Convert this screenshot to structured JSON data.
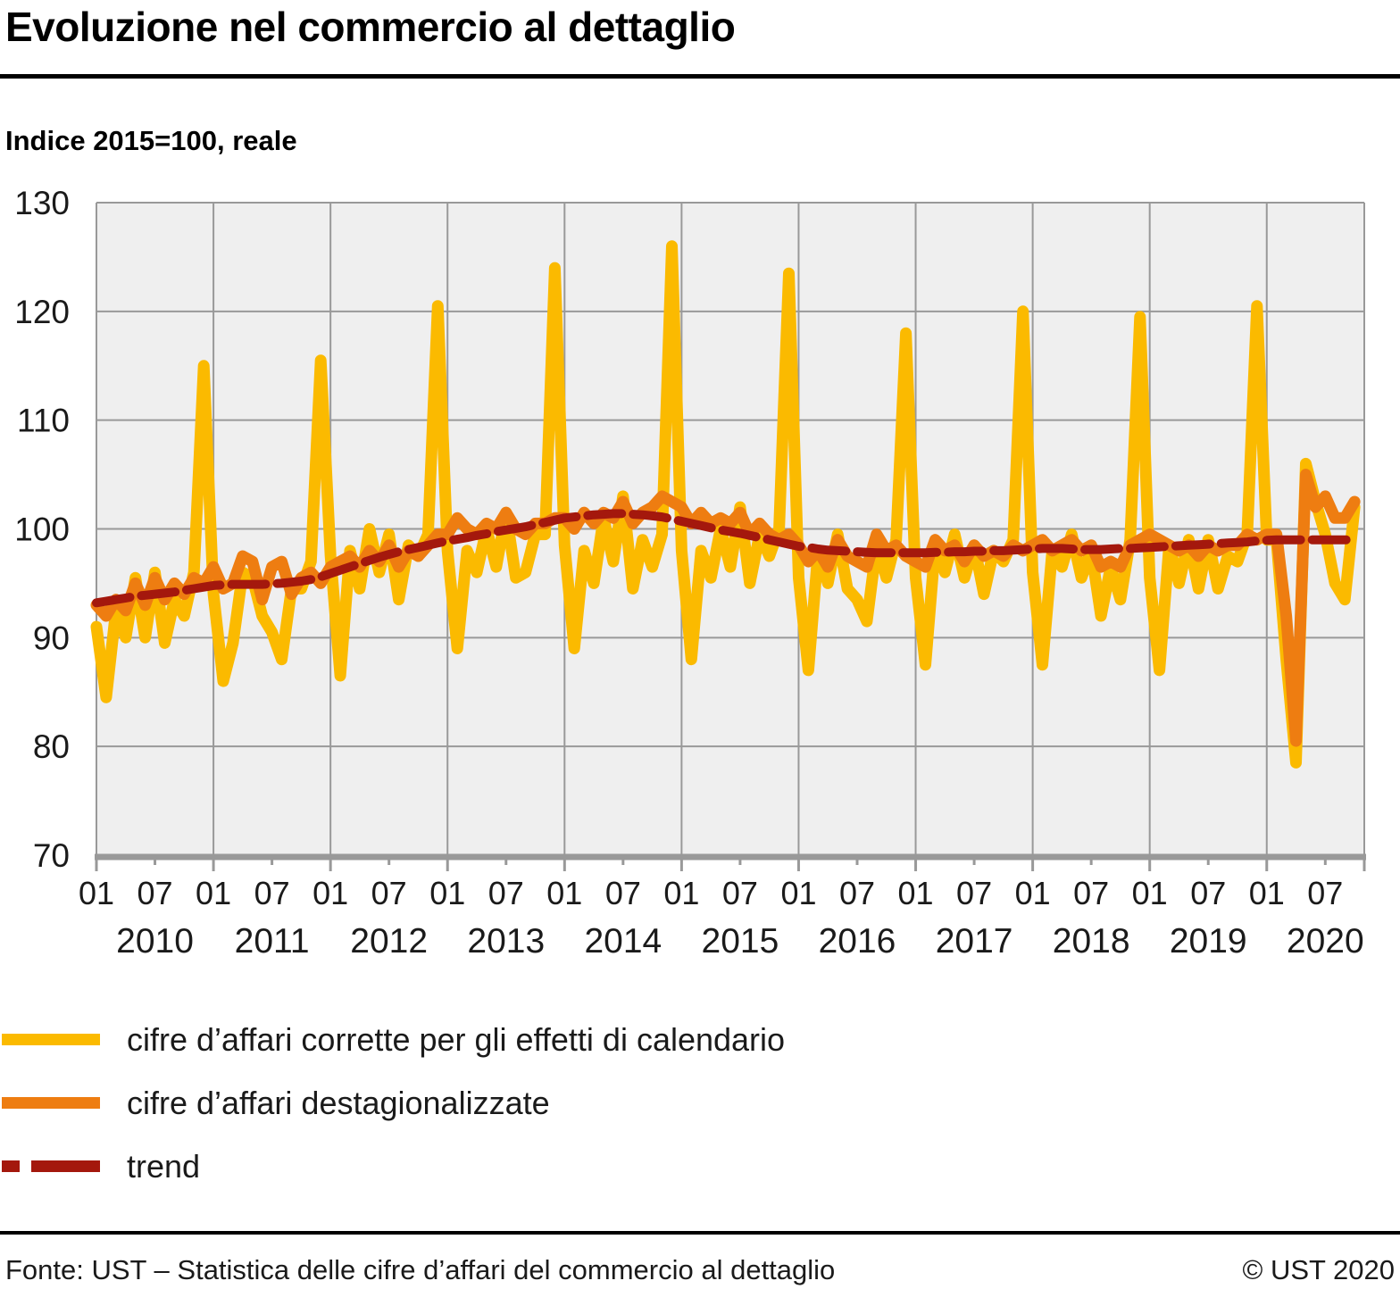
{
  "header": {
    "title": "Evoluzione nel commercio al dettaglio",
    "subtitle": "Indice 2015=100, reale"
  },
  "chart_data": {
    "type": "line",
    "title": "Evoluzione nel commercio al dettaglio",
    "ylabel": "Indice 2015=100, reale",
    "ylim": [
      70,
      130
    ],
    "yticks": [
      70,
      80,
      90,
      100,
      110,
      120,
      130
    ],
    "x_start": "2010-01",
    "x_end": "2020-10",
    "x_frequency": "monthly",
    "x_month_tick_labels": [
      "01",
      "07"
    ],
    "year_labels": [
      "2010",
      "2011",
      "2012",
      "2013",
      "2014",
      "2015",
      "2016",
      "2017",
      "2018",
      "2019",
      "2020"
    ],
    "grid": true,
    "grid_color": "#999999",
    "plot_bg": "#EFEFEF",
    "legend_position": "bottom",
    "series": [
      {
        "id": "calendar-adjusted",
        "name": "cifre d’affari corrette per gli effetti di calendario",
        "color": "#FBBA00",
        "style": "solid",
        "width": 13,
        "values": [
          91,
          84.5,
          92.5,
          90,
          95.5,
          90,
          96,
          89.5,
          93.5,
          92,
          96,
          115,
          94,
          86,
          89.5,
          96,
          95.5,
          92,
          90.5,
          88,
          94.5,
          94.5,
          97,
          115.5,
          97.5,
          86.5,
          98,
          94.5,
          100,
          96,
          99.5,
          93.5,
          98.5,
          97.5,
          99.5,
          120.5,
          98,
          89,
          98,
          96,
          100,
          96.5,
          101.5,
          95.5,
          96,
          99.5,
          99.5,
          124,
          98.5,
          89,
          98,
          95,
          101,
          97,
          103,
          94.5,
          99,
          96.5,
          99.5,
          126,
          98,
          88,
          98,
          95.5,
          100,
          96.5,
          102,
          95,
          99.5,
          97.5,
          100,
          123.5,
          95.5,
          87,
          98,
          95,
          99.5,
          94.5,
          93.5,
          91.5,
          98.5,
          95.5,
          99,
          118,
          95.5,
          87.5,
          98.5,
          96,
          99.5,
          95.5,
          98.5,
          94,
          98,
          97,
          99,
          120,
          96,
          87.5,
          98,
          96.5,
          99.5,
          95.5,
          98,
          92,
          96.5,
          93.5,
          99,
          119.5,
          95.5,
          87,
          98.5,
          95,
          99,
          94.5,
          99,
          94.5,
          97.5,
          97,
          99.5,
          120.5,
          99,
          99,
          88,
          78.5,
          106,
          102.5,
          99.5,
          95,
          93.5,
          102
        ]
      },
      {
        "id": "seasonally-adjusted",
        "name": "cifre d’affari destagionalizzate",
        "color": "#EE7D11",
        "style": "solid",
        "width": 13,
        "values": [
          93,
          92,
          93.5,
          92.5,
          95,
          93,
          95.5,
          93.5,
          95,
          94,
          95.5,
          95,
          96.5,
          94.5,
          95,
          97.5,
          97,
          93.5,
          96.5,
          97,
          94,
          95.5,
          96,
          95,
          96.5,
          97,
          97.5,
          96.5,
          98,
          97,
          98.5,
          96.5,
          98,
          97.5,
          98.5,
          99.5,
          99.5,
          101,
          100,
          99.5,
          100.5,
          100,
          101.5,
          100,
          99.5,
          100.5,
          100.5,
          101,
          101,
          100,
          101.5,
          100.5,
          101.5,
          101,
          102.5,
          100.5,
          101.5,
          102,
          103,
          102.5,
          102,
          100.5,
          101.5,
          100.5,
          101,
          100.5,
          101.5,
          99.5,
          100.5,
          99.5,
          99,
          99.5,
          98.5,
          97,
          98,
          96.5,
          99,
          97.5,
          97,
          96.5,
          99.5,
          98,
          98.5,
          97.5,
          97,
          96.5,
          99,
          98,
          98.5,
          97,
          98.5,
          97.5,
          98,
          97.5,
          98.5,
          98,
          98.5,
          99,
          98,
          98.5,
          99,
          98,
          98.5,
          96.5,
          97,
          96.5,
          98.5,
          99,
          99.5,
          99,
          98.5,
          98,
          98.5,
          97.5,
          98.5,
          98,
          98.5,
          98.5,
          99.5,
          99,
          99.5,
          99.5,
          92,
          80.5,
          105,
          102,
          103,
          101,
          101,
          102.5
        ]
      },
      {
        "id": "trend",
        "name": "trend",
        "color": "#A4180D",
        "style": "dashed",
        "width": 10,
        "values": [
          93.2,
          93.35,
          93.5,
          93.65,
          93.8,
          93.9,
          94,
          94.1,
          94.2,
          94.35,
          94.5,
          94.65,
          94.8,
          94.85,
          94.9,
          94.9,
          94.9,
          94.9,
          94.95,
          95,
          95.1,
          95.2,
          95.35,
          95.6,
          95.9,
          96.2,
          96.5,
          96.8,
          97.1,
          97.4,
          97.65,
          97.9,
          98.1,
          98.3,
          98.5,
          98.7,
          98.9,
          99.05,
          99.2,
          99.4,
          99.55,
          99.75,
          99.9,
          100.05,
          100.2,
          100.4,
          100.6,
          100.8,
          101,
          101.1,
          101.2,
          101.3,
          101.35,
          101.4,
          101.4,
          101.35,
          101.3,
          101.2,
          101.1,
          100.9,
          100.7,
          100.5,
          100.3,
          100.1,
          99.9,
          99.75,
          99.6,
          99.4,
          99.2,
          99,
          98.8,
          98.6,
          98.4,
          98.3,
          98.15,
          98.05,
          98,
          97.95,
          97.9,
          97.85,
          97.8,
          97.8,
          97.8,
          97.8,
          97.8,
          97.8,
          97.85,
          97.85,
          97.9,
          97.9,
          97.95,
          97.95,
          98,
          98,
          98.05,
          98.1,
          98.15,
          98.2,
          98.2,
          98.2,
          98.15,
          98.1,
          98.1,
          98.1,
          98.15,
          98.2,
          98.2,
          98.25,
          98.3,
          98.35,
          98.4,
          98.45,
          98.5,
          98.55,
          98.6,
          98.65,
          98.7,
          98.75,
          98.8,
          98.9,
          98.95,
          99,
          99,
          99,
          99,
          99,
          99,
          99,
          99,
          99
        ]
      }
    ]
  },
  "footer": {
    "source": "Fonte: UST – Statistica delle cifre d’affari del commercio al dettaglio",
    "copyright": "© UST 2020"
  }
}
